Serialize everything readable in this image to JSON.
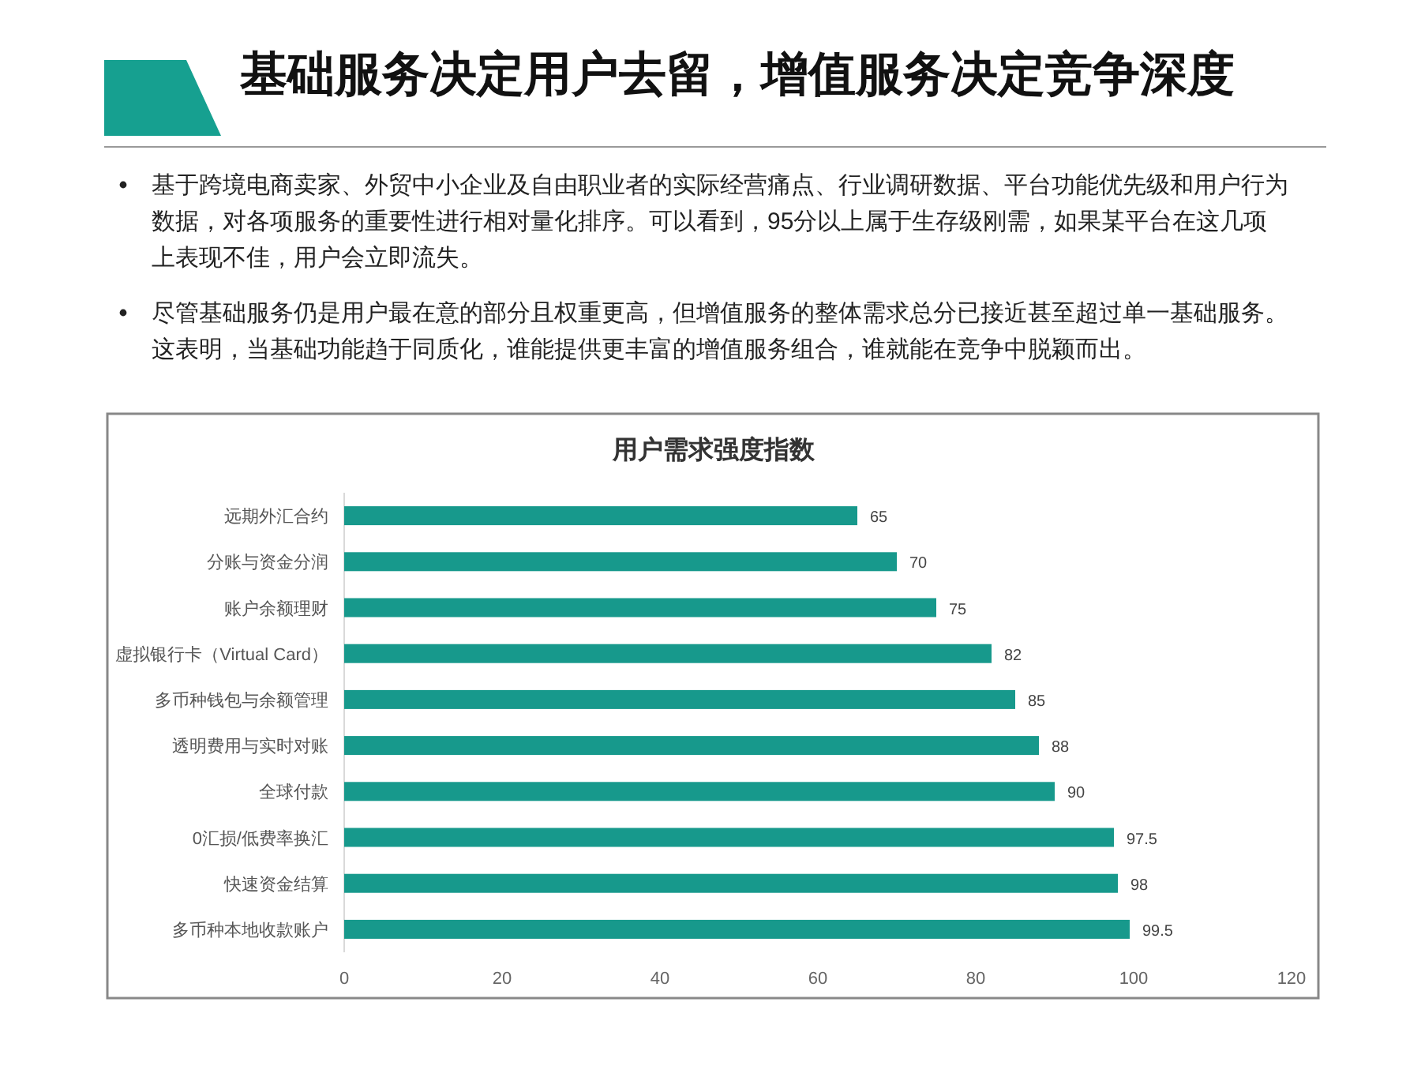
{
  "chart_data": {
    "type": "bar",
    "orientation": "horizontal",
    "title": "基础服务决定用户去留，增值服务决定竞争深度",
    "subtitle": "用户需求强度指数",
    "annotations": [
      "基于跨境电商卖家、外贸中小企业及自由职业者的实际经营痛点、行业调研数据、平台功能优先级和用户行为数据，对各项服务的重要性进行相对量化排序。可以看到，95分以上属于生存级刚需，如果某平台在这几项上表现不佳，用户会立即流失。",
      "尽管基础服务仍是用户最在意的部分且权重更高，但增值服务的整体需求总分已接近甚至超过单一基础服务。这表明，当基础功能趋于同质化，谁能提供更丰富的增值服务组合，谁就能在竞争中脱颖而出。"
    ],
    "categories": [
      "远期外汇合约",
      "分账与资金分润",
      "账户余额理财",
      "虚拟银行卡（Virtual Card）",
      "多币种钱包与余额管理",
      "透明费用与实时对账",
      "全球付款",
      "0汇损/低费率换汇",
      "快速资金结算",
      "多币种本地收款账户"
    ],
    "values": [
      65,
      70,
      75,
      82,
      85,
      88,
      90,
      97.5,
      98,
      99.5
    ],
    "color": "#17998c",
    "xlim": [
      0,
      120
    ],
    "xticks": [
      0,
      20,
      40,
      60,
      80,
      100,
      120
    ],
    "data_labels": true,
    "grid": false
  }
}
